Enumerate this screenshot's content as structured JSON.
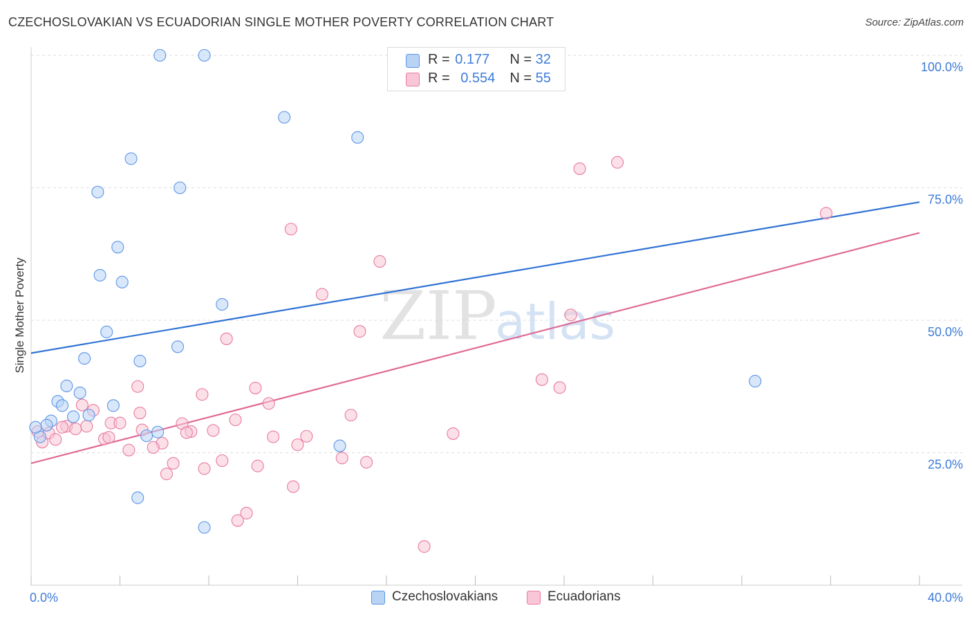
{
  "title": "CZECHOSLOVAKIAN VS ECUADORIAN SINGLE MOTHER POVERTY CORRELATION CHART",
  "source": "Source: ZipAtlas.com",
  "watermark": {
    "part1": "ZIP",
    "part2": "atlas"
  },
  "legend": {
    "r_label": "R =",
    "n_label": "N =",
    "rows": [
      {
        "r": "0.177",
        "n": "32"
      },
      {
        "r": "0.554",
        "n": "55"
      }
    ]
  },
  "chart_data": {
    "type": "scatter",
    "title": "CZECHOSLOVAKIAN VS ECUADORIAN SINGLE MOTHER POVERTY CORRELATION CHART",
    "xlabel": "",
    "ylabel": "Single Mother Poverty",
    "xlim": [
      0,
      40
    ],
    "ylim": [
      0,
      100
    ],
    "x_tick_labels": [
      "0.0%",
      "40.0%"
    ],
    "y_tick_labels": [
      "25.0%",
      "50.0%",
      "75.0%",
      "100.0%"
    ],
    "y_ticks": [
      25,
      50,
      75,
      100
    ],
    "grid": true,
    "legend_position": "top-center",
    "series": [
      {
        "name": "Czechoslovakians",
        "color": "#5b95e5",
        "fill": "#b9d3f5",
        "r": 0.177,
        "n": 32,
        "trend": [
          [
            0,
            43.8
          ],
          [
            40,
            72.3
          ]
        ],
        "points": [
          [
            5.8,
            100.0
          ],
          [
            7.8,
            100.0
          ],
          [
            11.4,
            88.3
          ],
          [
            14.7,
            84.5
          ],
          [
            4.5,
            80.5
          ],
          [
            6.7,
            75.0
          ],
          [
            3.0,
            74.2
          ],
          [
            3.9,
            63.8
          ],
          [
            3.1,
            58.5
          ],
          [
            4.1,
            57.2
          ],
          [
            8.6,
            53.0
          ],
          [
            3.4,
            47.8
          ],
          [
            6.6,
            45.0
          ],
          [
            2.4,
            42.8
          ],
          [
            4.9,
            42.3
          ],
          [
            32.6,
            38.5
          ],
          [
            1.6,
            37.6
          ],
          [
            2.2,
            36.3
          ],
          [
            1.2,
            34.7
          ],
          [
            1.4,
            33.9
          ],
          [
            3.7,
            33.9
          ],
          [
            2.6,
            32.1
          ],
          [
            1.9,
            31.8
          ],
          [
            0.9,
            31.0
          ],
          [
            0.7,
            30.2
          ],
          [
            5.7,
            28.9
          ],
          [
            5.2,
            28.2
          ],
          [
            0.4,
            28.0
          ],
          [
            13.9,
            26.3
          ],
          [
            4.8,
            16.5
          ],
          [
            7.8,
            10.9
          ],
          [
            0.2,
            29.8
          ]
        ]
      },
      {
        "name": "Ecuadorians",
        "color": "#e87aa0",
        "fill": "#f8c6d6",
        "r": 0.554,
        "n": 55,
        "trend": [
          [
            0,
            23.0
          ],
          [
            40,
            66.5
          ]
        ],
        "points": [
          [
            26.4,
            79.8
          ],
          [
            24.7,
            78.6
          ],
          [
            35.8,
            70.2
          ],
          [
            11.7,
            67.2
          ],
          [
            15.7,
            61.1
          ],
          [
            13.1,
            54.9
          ],
          [
            24.3,
            51.0
          ],
          [
            14.8,
            47.9
          ],
          [
            8.8,
            46.5
          ],
          [
            23.0,
            38.8
          ],
          [
            23.8,
            37.3
          ],
          [
            4.8,
            37.5
          ],
          [
            10.1,
            37.2
          ],
          [
            7.7,
            36.0
          ],
          [
            2.3,
            34.0
          ],
          [
            10.7,
            34.3
          ],
          [
            2.8,
            33.0
          ],
          [
            4.9,
            32.5
          ],
          [
            14.4,
            32.1
          ],
          [
            9.2,
            31.2
          ],
          [
            3.6,
            30.6
          ],
          [
            4.0,
            30.6
          ],
          [
            6.8,
            30.5
          ],
          [
            2.5,
            30.0
          ],
          [
            1.6,
            30.0
          ],
          [
            1.4,
            29.8
          ],
          [
            5.0,
            29.3
          ],
          [
            8.2,
            29.2
          ],
          [
            7.2,
            29.0
          ],
          [
            7.0,
            28.8
          ],
          [
            0.8,
            28.7
          ],
          [
            19.0,
            28.6
          ],
          [
            12.4,
            28.1
          ],
          [
            10.9,
            28.0
          ],
          [
            3.3,
            27.6
          ],
          [
            3.5,
            27.9
          ],
          [
            1.1,
            27.5
          ],
          [
            5.9,
            26.8
          ],
          [
            12.0,
            26.5
          ],
          [
            5.5,
            26.0
          ],
          [
            0.5,
            27.0
          ],
          [
            4.4,
            25.5
          ],
          [
            14.0,
            24.0
          ],
          [
            8.6,
            23.5
          ],
          [
            15.1,
            23.2
          ],
          [
            6.4,
            23.0
          ],
          [
            10.2,
            22.5
          ],
          [
            7.8,
            22.0
          ],
          [
            6.1,
            21.0
          ],
          [
            11.8,
            18.6
          ],
          [
            9.7,
            13.6
          ],
          [
            9.3,
            12.2
          ],
          [
            17.7,
            7.3
          ],
          [
            0.3,
            29.0
          ],
          [
            2.0,
            29.5
          ]
        ]
      }
    ]
  }
}
